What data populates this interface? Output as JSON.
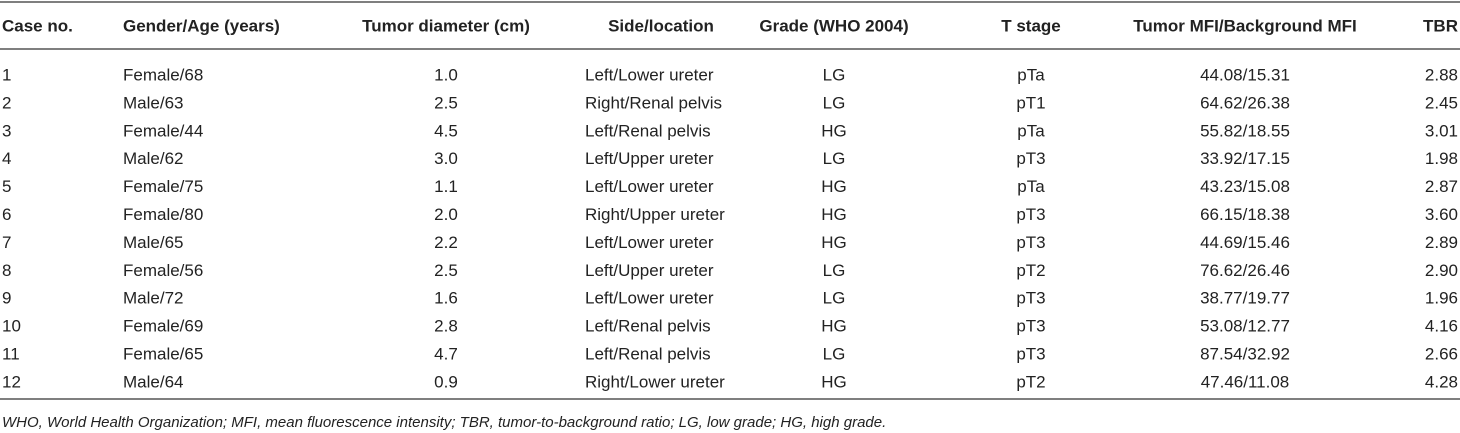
{
  "table": {
    "header": [
      "Case no.",
      "Gender/Age (years)",
      "Tumor diameter (cm)",
      "Side/location",
      "Grade (WHO 2004)",
      "T stage",
      "Tumor MFI/Background MFI",
      "TBR"
    ],
    "rows": [
      [
        "1",
        "Female/68",
        "1.0",
        "Left/Lower ureter",
        "LG",
        "pTa",
        "44.08/15.31",
        "2.88"
      ],
      [
        "2",
        "Male/63",
        "2.5",
        "Right/Renal pelvis",
        "LG",
        "pT1",
        "64.62/26.38",
        "2.45"
      ],
      [
        "3",
        "Female/44",
        "4.5",
        "Left/Renal pelvis",
        "HG",
        "pTa",
        "55.82/18.55",
        "3.01"
      ],
      [
        "4",
        "Male/62",
        "3.0",
        "Left/Upper ureter",
        "LG",
        "pT3",
        "33.92/17.15",
        "1.98"
      ],
      [
        "5",
        "Female/75",
        "1.1",
        "Left/Lower ureter",
        "HG",
        "pTa",
        "43.23/15.08",
        "2.87"
      ],
      [
        "6",
        "Female/80",
        "2.0",
        "Right/Upper ureter",
        "HG",
        "pT3",
        "66.15/18.38",
        "3.60"
      ],
      [
        "7",
        "Male/65",
        "2.2",
        "Left/Lower ureter",
        "HG",
        "pT3",
        "44.69/15.46",
        "2.89"
      ],
      [
        "8",
        "Female/56",
        "2.5",
        "Left/Upper ureter",
        "LG",
        "pT2",
        "76.62/26.46",
        "2.90"
      ],
      [
        "9",
        "Male/72",
        "1.6",
        "Left/Lower ureter",
        "LG",
        "pT3",
        "38.77/19.77",
        "1.96"
      ],
      [
        "10",
        "Female/69",
        "2.8",
        "Left/Renal pelvis",
        "HG",
        "pT3",
        "53.08/12.77",
        "4.16"
      ],
      [
        "11",
        "Female/65",
        "4.7",
        "Left/Renal pelvis",
        "LG",
        "pT3",
        "87.54/32.92",
        "2.66"
      ],
      [
        "12",
        "Male/64",
        "0.9",
        "Right/Lower ureter",
        "HG",
        "pT2",
        "47.46/11.08",
        "4.28"
      ]
    ]
  },
  "footnote": "WHO, World Health Organization; MFI, mean fluorescence intensity; TBR, tumor-to-background ratio; LG, low grade; HG, high grade."
}
